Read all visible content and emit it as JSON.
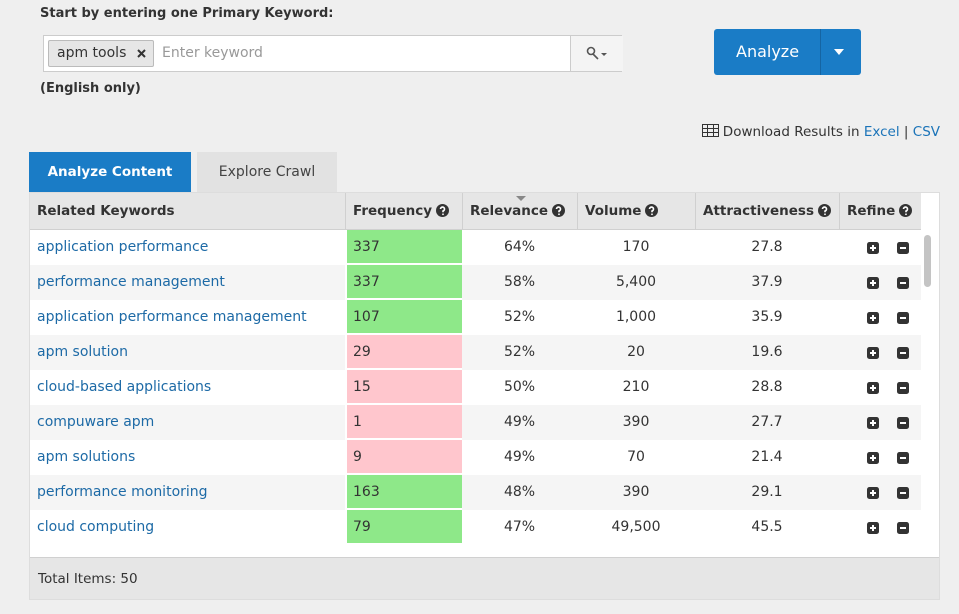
{
  "header": {
    "prompt": "Start by entering one Primary Keyword:",
    "tag": "apm tools",
    "placeholder": "Enter keyword",
    "note": "(English only)",
    "analyze_button": "Analyze"
  },
  "download": {
    "label": "Download Results in",
    "excel": "Excel",
    "separator": "|",
    "csv": "CSV"
  },
  "tabs": [
    "Analyze Content",
    "Explore Crawl"
  ],
  "table": {
    "columns": [
      "Related Keywords",
      "Frequency",
      "Relevance",
      "Volume",
      "Attractiveness",
      "Refine"
    ],
    "rows": [
      {
        "keyword": "application performance",
        "frequency": "337",
        "relevance": "64%",
        "volume": "170",
        "attractiveness": "27.8",
        "frequency_color": "#8ee889"
      },
      {
        "keyword": "performance management",
        "frequency": "337",
        "relevance": "58%",
        "volume": "5,400",
        "attractiveness": "37.9",
        "frequency_color": "#8ee889"
      },
      {
        "keyword": "application performance management",
        "frequency": "107",
        "relevance": "52%",
        "volume": "1,000",
        "attractiveness": "35.9",
        "frequency_color": "#8ee889"
      },
      {
        "keyword": "apm solution",
        "frequency": "29",
        "relevance": "52%",
        "volume": "20",
        "attractiveness": "19.6",
        "frequency_color": "#ffc6cd"
      },
      {
        "keyword": "cloud-based applications",
        "frequency": "15",
        "relevance": "50%",
        "volume": "210",
        "attractiveness": "28.8",
        "frequency_color": "#ffc6cd"
      },
      {
        "keyword": "compuware apm",
        "frequency": "1",
        "relevance": "49%",
        "volume": "390",
        "attractiveness": "27.7",
        "frequency_color": "#ffc6cd"
      },
      {
        "keyword": "apm solutions",
        "frequency": "9",
        "relevance": "49%",
        "volume": "70",
        "attractiveness": "21.4",
        "frequency_color": "#ffc6cd"
      },
      {
        "keyword": "performance monitoring",
        "frequency": "163",
        "relevance": "48%",
        "volume": "390",
        "attractiveness": "29.1",
        "frequency_color": "#8ee889"
      },
      {
        "keyword": "cloud computing",
        "frequency": "79",
        "relevance": "47%",
        "volume": "49,500",
        "attractiveness": "45.5",
        "frequency_color": "#8ee889"
      }
    ],
    "footer": "Total Items: 50"
  }
}
